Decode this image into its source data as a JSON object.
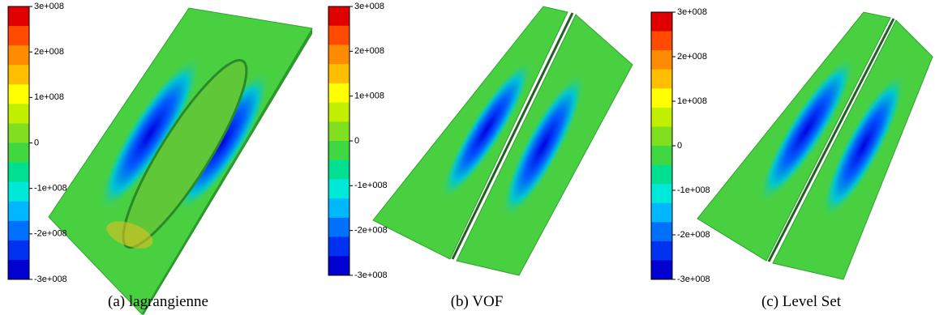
{
  "panels": [
    {
      "caption": "(a)  lagrangienne",
      "colorbar": {
        "ticks": [
          "3e+008",
          "2e+008",
          "1e+008",
          "0",
          "-1e+008",
          "-2e+008",
          "-3e+008"
        ]
      }
    },
    {
      "caption": "(b)  VOF",
      "colorbar": {
        "ticks": [
          "3e+008",
          "2e+008",
          "1e+008",
          "0",
          "-1e+008",
          "-2e+008",
          "-3e+008"
        ]
      }
    },
    {
      "caption": "(c)  Level Set",
      "colorbar": {
        "ticks": [
          "3e+008",
          "2e+008",
          "1e+008",
          "0",
          "-1e+008",
          "-2e+008",
          "-3e+008"
        ]
      }
    }
  ]
}
